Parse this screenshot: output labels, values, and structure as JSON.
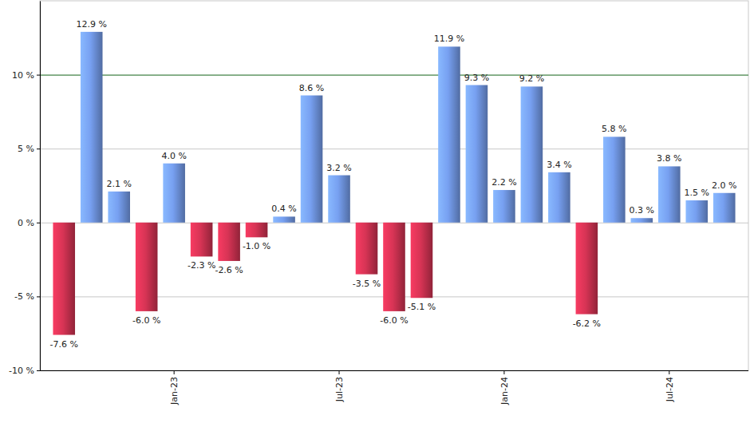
{
  "chart_data": {
    "type": "bar",
    "categories": [
      null,
      null,
      null,
      null,
      "Jan-23",
      null,
      null,
      null,
      null,
      null,
      "Jul-23",
      null,
      null,
      null,
      null,
      null,
      "Jan-24",
      null,
      null,
      null,
      null,
      null,
      "Jul-24",
      null,
      null
    ],
    "values": [
      -7.6,
      12.9,
      2.1,
      -6.0,
      4.0,
      -2.3,
      -2.6,
      -1.0,
      0.4,
      8.6,
      3.2,
      -3.5,
      -6.0,
      -5.1,
      11.9,
      9.3,
      2.2,
      9.2,
      3.4,
      -6.2,
      5.8,
      0.3,
      3.8,
      1.5,
      2.0
    ],
    "value_labels": [
      "-7.6 %",
      "12.9 %",
      "2.1 %",
      "-6.0 %",
      "4.0 %",
      "-2.3 %",
      "-2.6 %",
      "-1.0 %",
      "0.4 %",
      "8.6 %",
      "3.2 %",
      "-3.5 %",
      "-6.0 %",
      "-5.1 %",
      "11.9 %",
      "9.3 %",
      "2.2 %",
      "9.2 %",
      "3.4 %",
      "-6.2 %",
      "5.8 %",
      "0.3 %",
      "3.8 %",
      "1.5 %",
      "2.0 %"
    ],
    "colors": [
      "#c8304f",
      "#6f95e0",
      "#6f95e0",
      "#c8304f",
      "#6f95e0",
      "#c8304f",
      "#c8304f",
      "#c8304f",
      "#6f95e0",
      "#6f95e0",
      "#6f95e0",
      "#c8304f",
      "#c8304f",
      "#c8304f",
      "#6f95e0",
      "#6f95e0",
      "#6f95e0",
      "#6f95e0",
      "#6f95e0",
      "#c8304f",
      "#6f95e0",
      "#6f95e0",
      "#6f95e0",
      "#6f95e0",
      "#6f95e0"
    ],
    "ylim": [
      -10,
      15
    ],
    "yticks": [
      {
        "value": -10,
        "label": "-10 %"
      },
      {
        "value": -5,
        "label": "-5 %"
      },
      {
        "value": 0,
        "label": "0 %"
      },
      {
        "value": 5,
        "label": "5 %"
      },
      {
        "value": 10,
        "label": "10 %"
      }
    ],
    "target_line": 10,
    "grid": true,
    "data_labels": true
  }
}
